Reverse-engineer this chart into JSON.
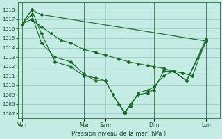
{
  "bg_color": "#c5ece4",
  "grid_color": "#9dcfc4",
  "line_color": "#1a6b2a",
  "xlabel": "Pression niveau de la mer( hPa )",
  "ylim": [
    1006.5,
    1018.8
  ],
  "yticks": [
    1007,
    1008,
    1009,
    1010,
    1011,
    1012,
    1013,
    1014,
    1015,
    1016,
    1017,
    1018
  ],
  "xtick_labels": [
    "Ven",
    "Mar",
    "Sam",
    "Dim",
    "Lun"
  ],
  "xtick_positions": [
    0.0,
    0.32,
    0.43,
    0.68,
    0.95
  ],
  "vline_positions": [
    0.0,
    0.32,
    0.68,
    0.95
  ],
  "series1_x": [
    0.0,
    0.05,
    0.1,
    0.95
  ],
  "series1_y": [
    1016.5,
    1018.0,
    1017.5,
    1014.7
  ],
  "series2_x": [
    0.0,
    0.05,
    0.1,
    0.15,
    0.2,
    0.25,
    0.32,
    0.38,
    0.43,
    0.5,
    0.55,
    0.6,
    0.65,
    0.68,
    0.73,
    0.78,
    0.83,
    0.88,
    0.95
  ],
  "series2_y": [
    1016.5,
    1017.0,
    1016.2,
    1015.5,
    1014.8,
    1014.5,
    1013.8,
    1013.5,
    1013.2,
    1012.8,
    1012.5,
    1012.3,
    1012.1,
    1012.0,
    1011.8,
    1011.5,
    1011.3,
    1011.0,
    1014.8
  ],
  "series3_x": [
    0.0,
    0.05,
    0.1,
    0.17,
    0.25,
    0.32,
    0.38,
    0.43,
    0.47,
    0.5,
    0.53,
    0.56,
    0.6,
    0.65,
    0.68,
    0.73,
    0.78,
    0.85,
    0.95
  ],
  "series3_y": [
    1016.5,
    1018.0,
    1015.5,
    1012.5,
    1012.0,
    1011.0,
    1010.8,
    1010.5,
    1009.0,
    1008.0,
    1007.0,
    1008.0,
    1009.0,
    1009.2,
    1009.5,
    1011.5,
    1011.5,
    1010.5,
    1014.6
  ],
  "series4_x": [
    0.0,
    0.05,
    0.1,
    0.17,
    0.25,
    0.32,
    0.38,
    0.43,
    0.47,
    0.5,
    0.53,
    0.56,
    0.6,
    0.65,
    0.68,
    0.73,
    0.78,
    0.85,
    0.95
  ],
  "series4_y": [
    1016.5,
    1017.5,
    1014.5,
    1013.0,
    1012.5,
    1011.2,
    1010.5,
    1010.5,
    1009.0,
    1008.0,
    1007.2,
    1007.8,
    1009.2,
    1009.5,
    1009.8,
    1011.0,
    1011.5,
    1010.5,
    1014.9
  ]
}
